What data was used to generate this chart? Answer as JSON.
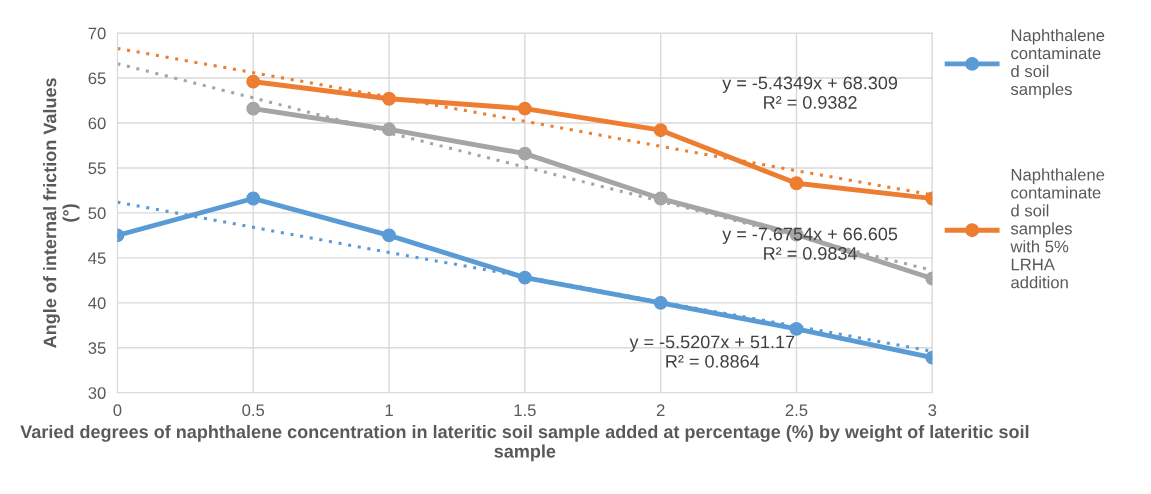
{
  "chart_data": {
    "type": "line",
    "xlabel": "Varied degrees of naphthalene concentration in lateritic soil sample added at percentage (%) by weight of lateritic soil sample",
    "ylabel": "Angle of internal friction Values (°)",
    "x": [
      0,
      0.5,
      1,
      1.5,
      2,
      2.5,
      3
    ],
    "series": [
      {
        "name": "Naphthalene contaminated soil samples",
        "color": "#5b9bd5",
        "values": [
          47.5,
          51.6,
          47.5,
          42.8,
          40.0,
          37.1,
          33.9
        ]
      },
      {
        "name": "Naphthalene contaminated soil samples with 5% LRHA addition",
        "color": "#ed7d31",
        "values": [
          null,
          64.6,
          62.7,
          61.6,
          59.2,
          53.3,
          51.6
        ]
      },
      {
        "color": "#a5a5a5",
        "values": [
          null,
          61.6,
          59.3,
          56.6,
          51.6,
          47.6,
          42.7
        ]
      },
      {
        "type": "line",
        "color": "#5b9bd5",
        "values": [
          51.2,
          48.4,
          45.6,
          42.9,
          40.1,
          37.4,
          34.6
        ],
        "line_style": "dotted",
        "marker": "none"
      },
      {
        "type": "line",
        "color": "#ed7d31",
        "values": [
          68.3,
          65.6,
          62.9,
          60.2,
          57.4,
          54.7,
          52.0
        ],
        "line_style": "dotted",
        "marker": "none"
      },
      {
        "type": "line",
        "color": "#a5a5a5",
        "values": [
          66.6,
          62.8,
          58.9,
          55.1,
          51.3,
          47.4,
          43.6
        ],
        "line_style": "dotted",
        "marker": "none"
      }
    ],
    "annotations": [
      "y = -5.4349x + 68.309\nR² = 0.9382",
      "y = -7.6754x + 66.605\nR² = 0.9834",
      "y = -5.5207x + 51.17\nR² = 0.8864"
    ],
    "xlim": [
      0,
      3
    ],
    "xticks": [
      0,
      0.5,
      1,
      1.5,
      2,
      2.5,
      3
    ],
    "ylim": [
      30,
      70
    ],
    "yticks": [
      30,
      35,
      40,
      45,
      50,
      55,
      60,
      65,
      70
    ],
    "grid": true,
    "legend": "right",
    "marker": "circle",
    "line_style": "solid"
  }
}
